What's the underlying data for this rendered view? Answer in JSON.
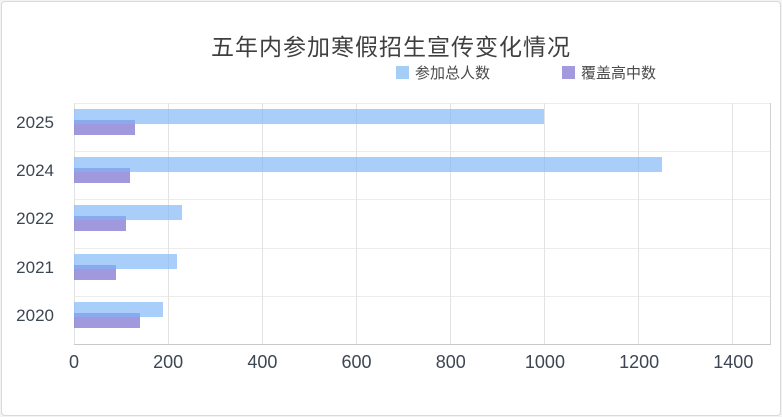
{
  "title": "五年内参加寒假招生宣传变化情况",
  "legend": [
    {
      "label": "参加总人数",
      "color": "#a5cef7"
    },
    {
      "label": "覆盖高中数",
      "color": "#a19add"
    }
  ],
  "chart_data": {
    "type": "bar",
    "orientation": "horizontal",
    "title": "五年内参加寒假招生宣传变化情况",
    "categories": [
      "2025",
      "2024",
      "2022",
      "2021",
      "2020"
    ],
    "series": [
      {
        "name": "参加总人数",
        "color": "rgba(125,181,246,0.66)",
        "values": [
          1000,
          1250,
          230,
          220,
          190
        ]
      },
      {
        "name": "覆盖高中数",
        "color": "rgba(121,110,208,0.70)",
        "values": [
          130,
          120,
          110,
          90,
          140
        ]
      }
    ],
    "xlabel": "",
    "ylabel": "",
    "x_ticks": [
      0,
      200,
      400,
      600,
      800,
      1000,
      1200,
      1400
    ],
    "xlim": [
      0,
      1480
    ],
    "grid": true,
    "legend_position": "top-center"
  },
  "colors": {
    "grid_vertical": "#e3e3e3",
    "grid_horizontal": "#ececec",
    "axis_line": "#c9c9c9",
    "title_text": "#3f3f3f",
    "tick_text": "#3d4653"
  }
}
